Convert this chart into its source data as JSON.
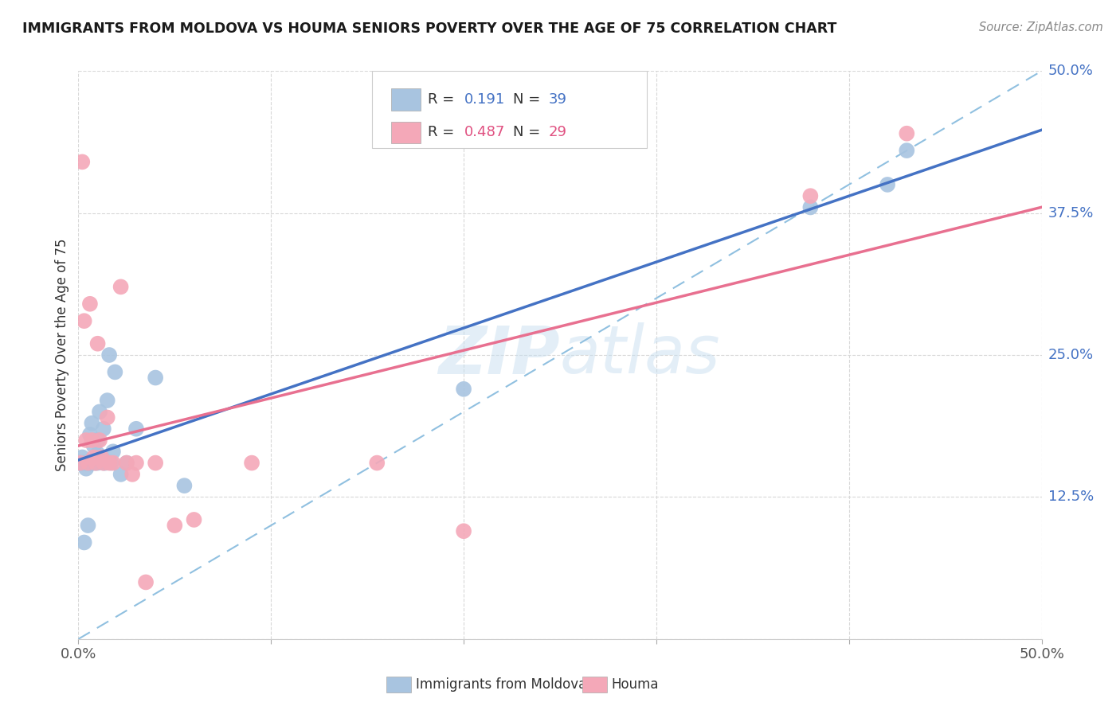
{
  "title": "IMMIGRANTS FROM MOLDOVA VS HOUMA SENIORS POVERTY OVER THE AGE OF 75 CORRELATION CHART",
  "source": "Source: ZipAtlas.com",
  "ylabel": "Seniors Poverty Over the Age of 75",
  "xlim": [
    0.0,
    0.5
  ],
  "ylim": [
    0.0,
    0.5
  ],
  "xticks": [
    0.0,
    0.1,
    0.2,
    0.3,
    0.4,
    0.5
  ],
  "yticks": [
    0.0,
    0.125,
    0.25,
    0.375,
    0.5
  ],
  "xticklabels_show": [
    "0.0%",
    "50.0%"
  ],
  "yticklabels": [
    "",
    "12.5%",
    "25.0%",
    "37.5%",
    "50.0%"
  ],
  "blue_R": "0.191",
  "blue_N": "39",
  "pink_R": "0.487",
  "pink_N": "29",
  "blue_color": "#a8c4e0",
  "pink_color": "#f4a8b8",
  "blue_line_color": "#4472c4",
  "pink_line_color": "#e87090",
  "dashed_line_color": "#90c0e0",
  "watermark_color": "#c8dff0",
  "blue_x": [
    0.001,
    0.002,
    0.002,
    0.003,
    0.003,
    0.004,
    0.004,
    0.005,
    0.005,
    0.006,
    0.006,
    0.007,
    0.007,
    0.008,
    0.008,
    0.009,
    0.009,
    0.01,
    0.01,
    0.01,
    0.011,
    0.012,
    0.013,
    0.013,
    0.014,
    0.015,
    0.016,
    0.017,
    0.018,
    0.019,
    0.022,
    0.025,
    0.03,
    0.04,
    0.055,
    0.2,
    0.38,
    0.42,
    0.43
  ],
  "blue_y": [
    0.155,
    0.155,
    0.16,
    0.155,
    0.085,
    0.155,
    0.15,
    0.155,
    0.1,
    0.155,
    0.18,
    0.155,
    0.19,
    0.155,
    0.17,
    0.155,
    0.158,
    0.155,
    0.163,
    0.175,
    0.2,
    0.16,
    0.155,
    0.185,
    0.155,
    0.21,
    0.25,
    0.155,
    0.165,
    0.235,
    0.145,
    0.155,
    0.185,
    0.23,
    0.135,
    0.22,
    0.38,
    0.4,
    0.43
  ],
  "pink_x": [
    0.001,
    0.002,
    0.003,
    0.004,
    0.005,
    0.006,
    0.007,
    0.008,
    0.009,
    0.01,
    0.011,
    0.012,
    0.013,
    0.015,
    0.016,
    0.018,
    0.022,
    0.025,
    0.028,
    0.03,
    0.06,
    0.155,
    0.2,
    0.38,
    0.43,
    0.09,
    0.035,
    0.04,
    0.05
  ],
  "pink_y": [
    0.155,
    0.42,
    0.28,
    0.175,
    0.155,
    0.295,
    0.175,
    0.16,
    0.155,
    0.26,
    0.175,
    0.16,
    0.155,
    0.195,
    0.155,
    0.155,
    0.31,
    0.155,
    0.145,
    0.155,
    0.105,
    0.155,
    0.095,
    0.39,
    0.445,
    0.155,
    0.05,
    0.155,
    0.1
  ]
}
